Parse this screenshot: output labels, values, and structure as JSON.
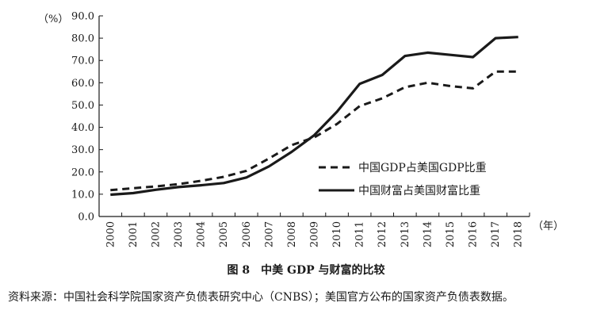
{
  "chart_data": {
    "type": "line",
    "ylabel": "（%）",
    "xlabel": "（年）",
    "ylim": [
      0,
      90
    ],
    "yticks": [
      "0.0",
      "10.0",
      "20.0",
      "30.0",
      "40.0",
      "50.0",
      "60.0",
      "70.0",
      "80.0",
      "90.0"
    ],
    "x": [
      "2000",
      "2001",
      "2002",
      "2003",
      "2004",
      "2005",
      "2006",
      "2007",
      "2008",
      "2009",
      "2010",
      "2011",
      "2012",
      "2013",
      "2014",
      "2015",
      "2016",
      "2017",
      "2018"
    ],
    "series": [
      {
        "name": "中国GDP占美国GDP比重",
        "style": "dashed",
        "color": "#1a1a1a",
        "values": [
          11.8,
          12.7,
          13.5,
          14.5,
          16.0,
          17.8,
          20.5,
          26.0,
          32.0,
          35.5,
          41.5,
          49.5,
          53.0,
          58.0,
          60.0,
          58.5,
          57.5,
          65.0,
          65.0
        ]
      },
      {
        "name": "中国财富占美国财富比重",
        "style": "solid",
        "color": "#1a1a1a",
        "values": [
          9.8,
          10.5,
          12.0,
          13.2,
          14.0,
          15.0,
          17.5,
          22.5,
          29.0,
          36.5,
          47.0,
          59.5,
          63.5,
          72.0,
          73.5,
          72.5,
          71.5,
          80.0,
          80.5
        ]
      }
    ],
    "legend_position": "right-center",
    "grid": false
  },
  "caption": "图 8　中美 GDP 与财富的比较",
  "source": "资料来源：中国社会科学院国家资产负债表研究中心（CNBS）；美国官方公布的国家资产负债表数据。"
}
